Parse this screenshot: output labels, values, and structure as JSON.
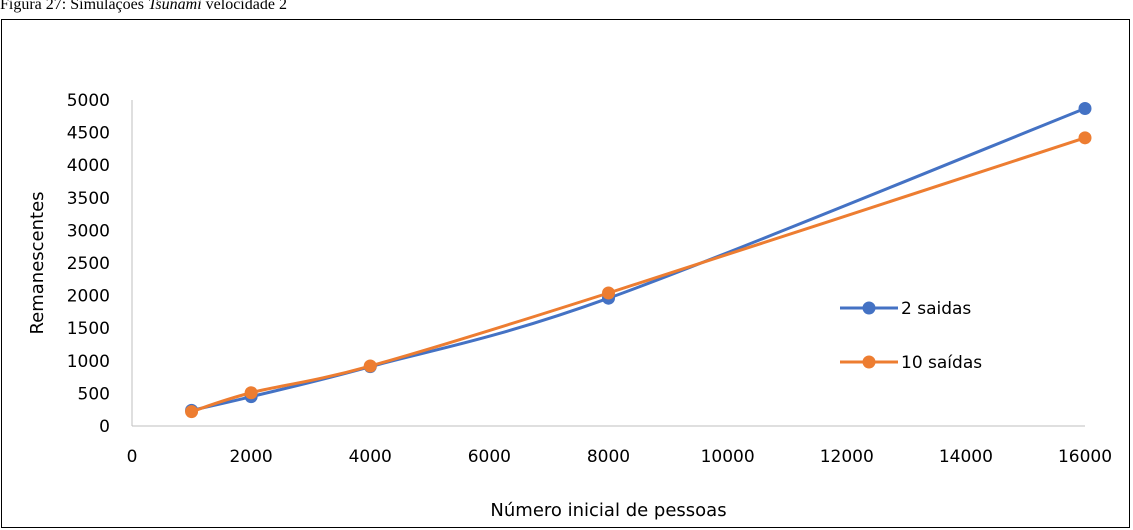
{
  "caption": {
    "prefix": "Figura 27: Simulações ",
    "italic": "Tsunami",
    "suffix": " velocidade 2"
  },
  "chart_data": {
    "type": "line",
    "title": "",
    "xlabel": "Número inicial de pessoas",
    "ylabel": "Remanescentes",
    "xlim": [
      0,
      16000
    ],
    "ylim": [
      0,
      5000
    ],
    "xticks": [
      0,
      2000,
      4000,
      6000,
      8000,
      10000,
      12000,
      14000,
      16000
    ],
    "yticks": [
      0,
      500,
      1000,
      1500,
      2000,
      2500,
      3000,
      3500,
      4000,
      4500,
      5000
    ],
    "grid": false,
    "legend_position": "right",
    "smooth": true,
    "series": [
      {
        "name": "2 saidas",
        "color": "#4472C4",
        "x": [
          1000,
          2000,
          4000,
          8000,
          16000
        ],
        "y": [
          240,
          450,
          910,
          1960,
          4870
        ]
      },
      {
        "name": "10 saídas",
        "color": "#ED7D31",
        "x": [
          1000,
          2000,
          4000,
          8000,
          16000
        ],
        "y": [
          220,
          510,
          920,
          2040,
          4420
        ]
      }
    ]
  }
}
